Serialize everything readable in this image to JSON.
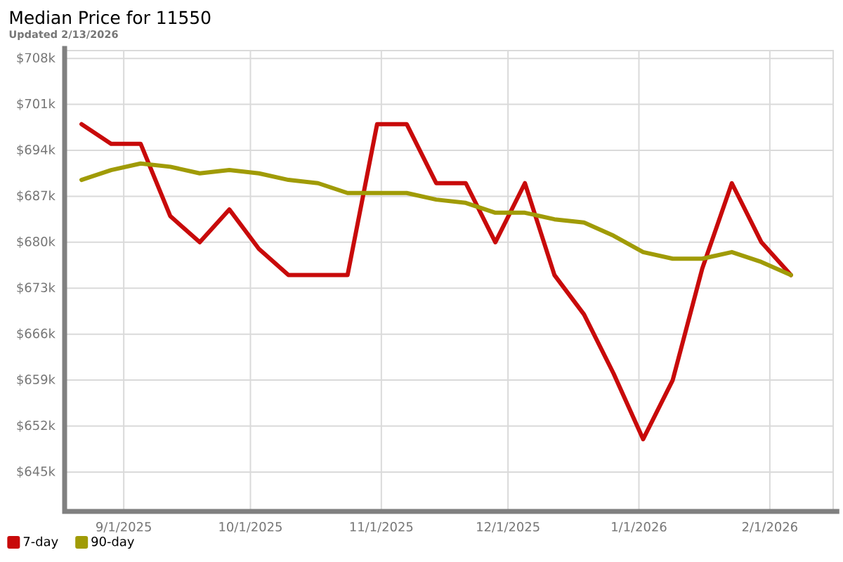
{
  "chart_data": {
    "type": "line",
    "title": "Median Price for 11550",
    "subtitle": "Updated 2/13/2026",
    "x": [
      "2025-08-22",
      "2025-08-29",
      "2025-09-05",
      "2025-09-12",
      "2025-09-19",
      "2025-09-26",
      "2025-10-03",
      "2025-10-10",
      "2025-10-17",
      "2025-10-24",
      "2025-10-31",
      "2025-11-07",
      "2025-11-14",
      "2025-11-21",
      "2025-11-28",
      "2025-12-05",
      "2025-12-12",
      "2025-12-19",
      "2025-12-26",
      "2026-01-02",
      "2026-01-09",
      "2026-01-16",
      "2026-01-23",
      "2026-01-30",
      "2026-02-06"
    ],
    "series": [
      {
        "name": "7-day",
        "color": "#c80a0a",
        "values": [
          698,
          695,
          695,
          684,
          680,
          685,
          679,
          675,
          675,
          675,
          698,
          698,
          689,
          689,
          680,
          689,
          675,
          669,
          660,
          650,
          659,
          676,
          689,
          680,
          675
        ]
      },
      {
        "name": "90-day",
        "color": "#a09b06",
        "values": [
          689.5,
          691,
          692,
          691.5,
          690.5,
          691,
          690.5,
          689.5,
          689,
          687.5,
          687.5,
          687.5,
          686.5,
          686,
          684.5,
          684.5,
          683.5,
          683,
          681,
          678.5,
          677.5,
          677.5,
          678.5,
          677,
          675
        ]
      }
    ],
    "xlim": [
      "2025-08-18",
      "2026-02-16"
    ],
    "xticks": [
      {
        "value": "2025-09-01",
        "label": "9/1/2025"
      },
      {
        "value": "2025-10-01",
        "label": "10/1/2025"
      },
      {
        "value": "2025-11-01",
        "label": "11/1/2025"
      },
      {
        "value": "2025-12-01",
        "label": "12/1/2025"
      },
      {
        "value": "2026-01-01",
        "label": "1/1/2026"
      },
      {
        "value": "2026-02-01",
        "label": "2/1/2026"
      }
    ],
    "ylim": [
      639,
      709.2
    ],
    "yticks": [
      {
        "value": 645,
        "label": "$645k"
      },
      {
        "value": 652,
        "label": "$652k"
      },
      {
        "value": 659,
        "label": "$659k"
      },
      {
        "value": 666,
        "label": "$666k"
      },
      {
        "value": 673,
        "label": "$673k"
      },
      {
        "value": 680,
        "label": "$680k"
      },
      {
        "value": 687,
        "label": "$687k"
      },
      {
        "value": 694,
        "label": "$694k"
      },
      {
        "value": 701,
        "label": "$701k"
      },
      {
        "value": 708,
        "label": "$708k"
      }
    ],
    "grid": true,
    "legend": "bottom left",
    "line_style": "solid"
  }
}
